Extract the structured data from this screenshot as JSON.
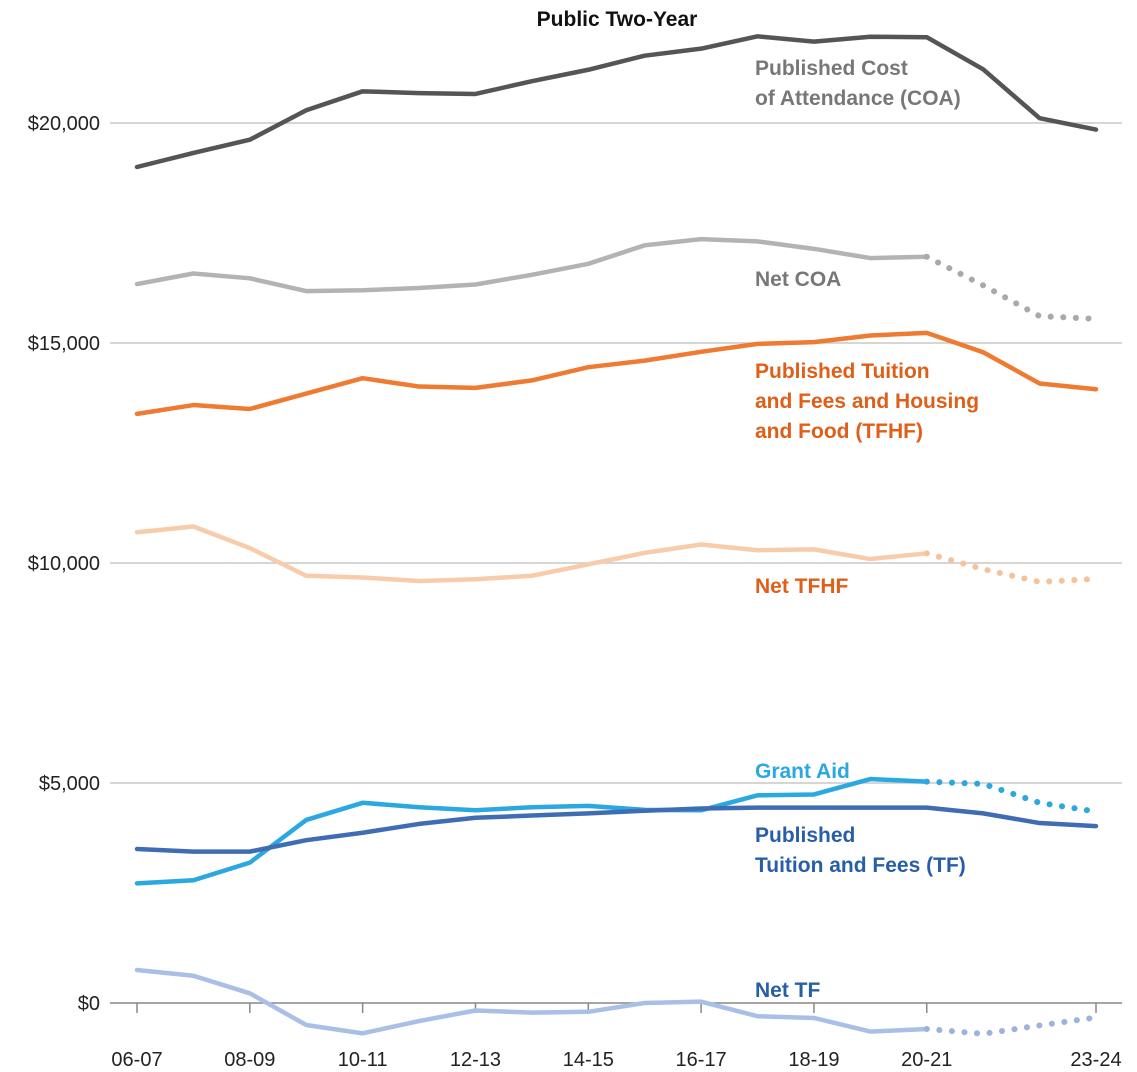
{
  "chart_data": {
    "type": "line",
    "title": "Public Two-Year",
    "xlabel": "",
    "ylabel": "",
    "x": [
      "06-07",
      "07-08",
      "08-09",
      "09-10",
      "10-11",
      "11-12",
      "12-13",
      "13-14",
      "14-15",
      "15-16",
      "16-17",
      "17-18",
      "18-19",
      "19-20",
      "20-21",
      "21-22",
      "22-23",
      "23-24"
    ],
    "x_tick_labels": [
      "06-07",
      "08-09",
      "10-11",
      "12-13",
      "14-15",
      "16-17",
      "18-19",
      "20-21",
      "23-24"
    ],
    "ylim": [
      -700,
      22000
    ],
    "y_ticks": [
      0,
      5000,
      10000,
      15000,
      20000
    ],
    "y_tick_labels": [
      "$0",
      "$5,000",
      "$10,000",
      "$15,000",
      "$20,000"
    ],
    "grid": true,
    "legend": "inline labels",
    "projected_from": "20-21",
    "series": [
      {
        "name": "Published Cost of Attendance (COA)",
        "label_lines": [
          "Published Cost",
          "of Attendance (COA)"
        ],
        "color": "#555555",
        "label_color": "#777777",
        "projected_dotted": false,
        "values": [
          19000,
          19320,
          19620,
          20290,
          20720,
          20680,
          20660,
          20950,
          21210,
          21530,
          21690,
          21970,
          21850,
          21960,
          21950,
          21220,
          20110,
          19850
        ]
      },
      {
        "name": "Net COA",
        "label_lines": [
          "Net COA"
        ],
        "color": "#b5b2b2",
        "dot_color": "#a9a9a9",
        "label_color": "#777777",
        "projected_dotted": true,
        "values": [
          16340,
          16580,
          16470,
          16180,
          16200,
          16250,
          16330,
          16550,
          16800,
          17220,
          17360,
          17310,
          17140,
          16930,
          16960,
          16310,
          15610,
          15550
        ]
      },
      {
        "name": "Published Tuition and Fees and Housing and Food (TFHF)",
        "label_lines": [
          "Published Tuition",
          "and Fees and Housing",
          "and Food (TFHF)"
        ],
        "color": "#ee7b31",
        "label_color": "#df5f18",
        "projected_dotted": false,
        "values": [
          13390,
          13590,
          13500,
          13850,
          14200,
          14010,
          13980,
          14150,
          14450,
          14600,
          14800,
          14980,
          15020,
          15170,
          15230,
          14790,
          14080,
          13950
        ]
      },
      {
        "name": "Net TFHF",
        "label_lines": [
          "Net TFHF"
        ],
        "color": "#f8ccaa",
        "dot_color": "#f6c29b",
        "label_color": "#df5f18",
        "projected_dotted": true,
        "values": [
          10700,
          10830,
          10340,
          9710,
          9670,
          9590,
          9630,
          9710,
          9970,
          10230,
          10420,
          10290,
          10310,
          10090,
          10220,
          9860,
          9570,
          9640
        ]
      },
      {
        "name": "Grant Aid",
        "label_lines": [
          "Grant Aid"
        ],
        "color": "#2ba8e0",
        "label_color": "#2ba8e0",
        "projected_dotted": true,
        "values": [
          2720,
          2790,
          3190,
          4160,
          4550,
          4450,
          4380,
          4450,
          4480,
          4390,
          4380,
          4720,
          4740,
          5090,
          5030,
          4980,
          4550,
          4350
        ]
      },
      {
        "name": "Published Tuition and Fees (TF)",
        "label_lines": [
          "Published",
          "Tuition and Fees (TF)"
        ],
        "color": "#3f6db3",
        "label_color": "#285ea7",
        "projected_dotted": false,
        "values": [
          3500,
          3440,
          3440,
          3700,
          3870,
          4070,
          4210,
          4260,
          4310,
          4370,
          4420,
          4440,
          4440,
          4440,
          4440,
          4310,
          4090,
          4020
        ]
      },
      {
        "name": "Net TF",
        "label_lines": [
          "Net TF"
        ],
        "color": "#a9bfe6",
        "dot_color": "#9db3de",
        "label_color": "#285ea7",
        "projected_dotted": true,
        "values": [
          750,
          620,
          220,
          -500,
          -690,
          -410,
          -170,
          -220,
          -200,
          0,
          30,
          -300,
          -340,
          -650,
          -590,
          -700,
          -510,
          -330
        ]
      }
    ]
  }
}
